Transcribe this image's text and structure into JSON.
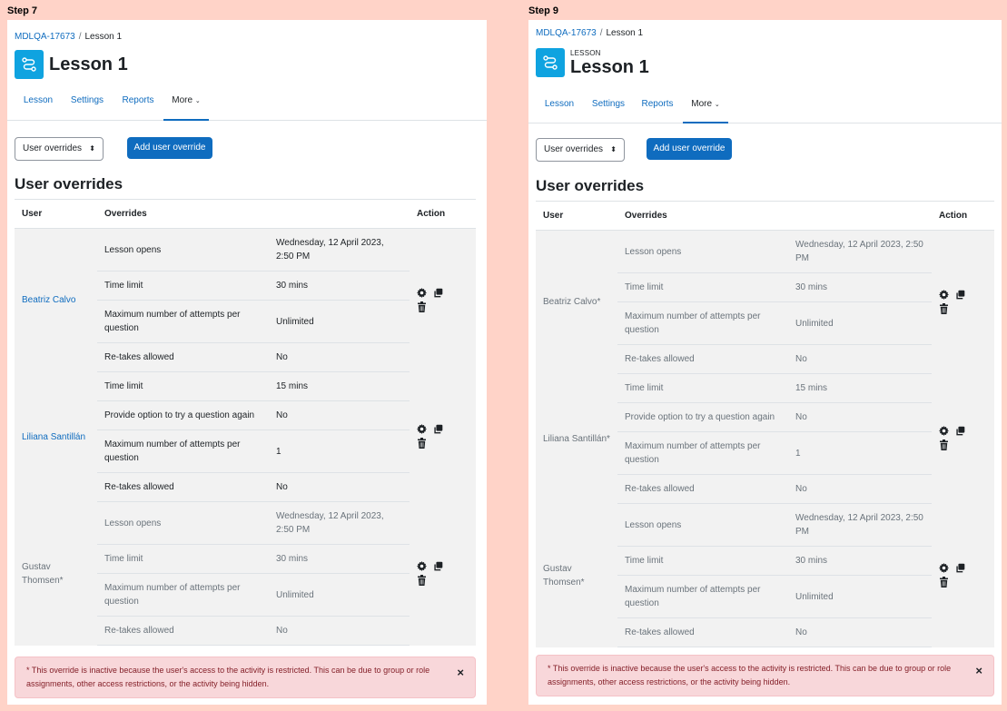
{
  "steps": {
    "left": "Step 7",
    "right": "Step 9"
  },
  "breadcrumb": {
    "course": "MDLQA-17673",
    "sep": "/",
    "page": "Lesson 1"
  },
  "page": {
    "module_type": "LESSON",
    "title": "Lesson 1"
  },
  "tabs": [
    "Lesson",
    "Settings",
    "Reports",
    "More"
  ],
  "select": {
    "value": "User overrides"
  },
  "add_button": "Add user override",
  "section_heading": "User overrides",
  "table": {
    "headers": {
      "user": "User",
      "overrides": "Overrides",
      "action": "Action"
    }
  },
  "left": {
    "users": [
      {
        "name": "Beatriz Calvo",
        "rows": [
          {
            "label": "Lesson opens",
            "value": "Wednesday, 12 April 2023, 2:50 PM"
          },
          {
            "label": "Time limit",
            "value": "30 mins"
          },
          {
            "label": "Maximum number of attempts per question",
            "value": "Unlimited"
          },
          {
            "label": "Re-takes allowed",
            "value": "No"
          }
        ]
      },
      {
        "name": "Liliana Santillán",
        "rows": [
          {
            "label": "Time limit",
            "value": "15 mins"
          },
          {
            "label": "Provide option to try a question again",
            "value": "No"
          },
          {
            "label": "Maximum number of attempts per question",
            "value": "1"
          },
          {
            "label": "Re-takes allowed",
            "value": "No"
          }
        ]
      },
      {
        "name": "Gustav Thomsen*",
        "rows": [
          {
            "label": "Lesson opens",
            "value": "Wednesday, 12 April 2023, 2:50 PM"
          },
          {
            "label": "Time limit",
            "value": "30 mins"
          },
          {
            "label": "Maximum number of attempts per question",
            "value": "Unlimited"
          },
          {
            "label": "Re-takes allowed",
            "value": "No"
          }
        ]
      }
    ]
  },
  "right": {
    "users": [
      {
        "name": "Beatriz Calvo*",
        "rows": [
          {
            "label": "Lesson opens",
            "value": "Wednesday, 12 April 2023, 2:50 PM"
          },
          {
            "label": "Time limit",
            "value": "30 mins"
          },
          {
            "label": "Maximum number of attempts per question",
            "value": "Unlimited"
          },
          {
            "label": "Re-takes allowed",
            "value": "No"
          }
        ]
      },
      {
        "name": "Liliana Santillán*",
        "rows": [
          {
            "label": "Time limit",
            "value": "15 mins"
          },
          {
            "label": "Provide option to try a question again",
            "value": "No"
          },
          {
            "label": "Maximum number of attempts per question",
            "value": "1"
          },
          {
            "label": "Re-takes allowed",
            "value": "No"
          }
        ]
      },
      {
        "name": "Gustav Thomsen*",
        "rows": [
          {
            "label": "Lesson opens",
            "value": "Wednesday, 12 April 2023, 2:50 PM"
          },
          {
            "label": "Time limit",
            "value": "30 mins"
          },
          {
            "label": "Maximum number of attempts per question",
            "value": "Unlimited"
          },
          {
            "label": "Re-takes allowed",
            "value": "No"
          }
        ]
      }
    ]
  },
  "alert": {
    "text": "* This override is inactive because the user's access to the activity is restricted. This can be due to group or role assignments, other access restrictions, or the activity being hidden.",
    "close": "×"
  },
  "icons": {
    "edit": "cog-icon",
    "duplicate": "copy-icon",
    "delete": "trash-icon",
    "module": "lesson-icon"
  },
  "colors": {
    "link": "#0f6cbf",
    "primary": "#0f6cbf",
    "lesson_icon_bg": "#0fa3e0",
    "alert_bg": "#f8d7da",
    "page_bg": "#ffd3c8"
  }
}
